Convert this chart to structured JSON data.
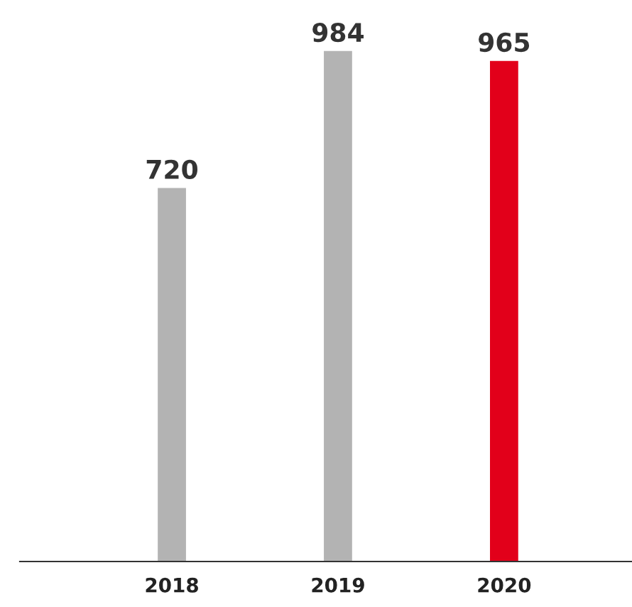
{
  "chart_data": {
    "type": "bar",
    "categories": [
      "2018",
      "2019",
      "2020"
    ],
    "values": [
      720,
      984,
      965
    ],
    "colors": [
      "#b3b3b3",
      "#b3b3b3",
      "#e2001a"
    ],
    "data_labels": true,
    "grid": false,
    "legend": false
  }
}
